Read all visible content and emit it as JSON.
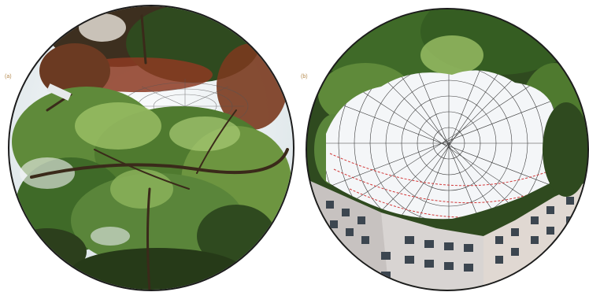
{
  "panels": [
    {
      "label": "(a)"
    },
    {
      "label": "(b)"
    }
  ],
  "colors": {
    "foliage_dark": "#2f4a1f",
    "foliage_mid": "#5f8a3a",
    "foliage_light": "#9cc067",
    "autumn_red": "#8c3a22",
    "sky": "#f4f6f8",
    "grid_line": "#3a3a3a",
    "sun_path": "#d23a3a",
    "building_wall": "#d8d4d2",
    "building_window": "#3c4650",
    "frame": "#1c1c1c"
  }
}
